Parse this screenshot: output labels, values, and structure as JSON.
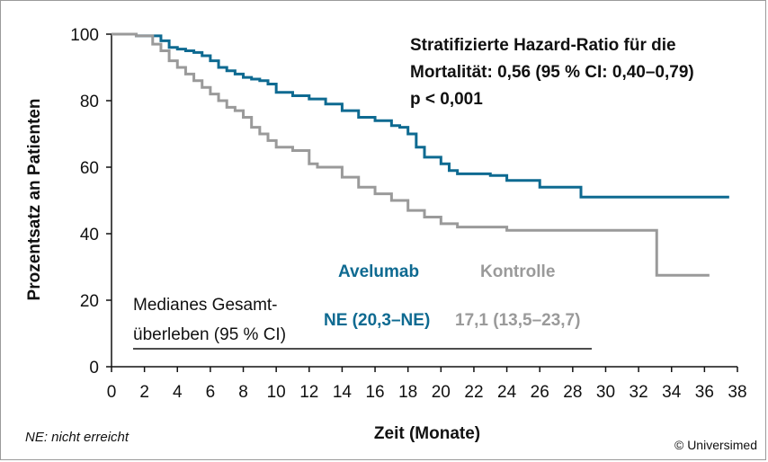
{
  "chart_data": {
    "type": "line",
    "subtype": "kaplan-meier",
    "title": "",
    "xlabel": "Zeit (Monate)",
    "ylabel": "Prozentsatz an Patienten",
    "xlim": [
      0,
      38
    ],
    "ylim": [
      0,
      100
    ],
    "xticks": [
      0,
      2,
      4,
      6,
      8,
      10,
      12,
      14,
      16,
      18,
      20,
      22,
      24,
      26,
      28,
      30,
      32,
      34,
      36,
      38
    ],
    "yticks": [
      0,
      20,
      40,
      60,
      80,
      100
    ],
    "grid": false,
    "series": [
      {
        "name": "Avelumab",
        "color": "#0e6a91",
        "x": [
          0,
          1.5,
          3,
          3.5,
          4,
          4.5,
          5,
          5.5,
          6,
          6.5,
          7,
          7.5,
          8,
          8.5,
          9,
          9.5,
          10,
          11,
          12,
          13,
          14,
          15,
          16,
          17,
          17.5,
          18,
          18.5,
          19,
          20,
          20.5,
          21,
          22,
          23,
          24,
          25,
          26,
          27,
          28,
          28.5,
          30,
          32,
          34,
          36,
          37.5
        ],
        "values": [
          100,
          99.5,
          98,
          96,
          95.5,
          95,
          94.5,
          93.5,
          92,
          90,
          89,
          88,
          87,
          86.5,
          86,
          85,
          82.5,
          81.5,
          80.5,
          79,
          77,
          75,
          74,
          72.5,
          72,
          70,
          66,
          63,
          61,
          59,
          58,
          58,
          57.5,
          56,
          56,
          54,
          54,
          54,
          51,
          51,
          51,
          51,
          51,
          51
        ]
      },
      {
        "name": "Kontrolle",
        "color": "#9a9a9a",
        "x": [
          0,
          1.5,
          2.5,
          3,
          3.5,
          4,
          4.5,
          5,
          5.5,
          6,
          6.5,
          7,
          7.5,
          8,
          8.5,
          9,
          9.5,
          10,
          11,
          12,
          12.5,
          13,
          14,
          15,
          16,
          17,
          18,
          19,
          20,
          21,
          22,
          24,
          26,
          28,
          30,
          32,
          33,
          33.1,
          35,
          36.3
        ],
        "values": [
          100,
          99.5,
          97,
          95,
          92,
          90,
          88,
          86,
          84,
          82,
          80,
          78,
          77,
          75,
          72,
          70,
          68,
          66,
          65,
          61,
          60,
          60,
          57,
          54,
          52,
          50,
          47,
          45,
          43,
          42,
          42,
          41,
          41,
          41,
          41,
          41,
          41,
          27.5,
          27.5,
          27.5
        ]
      }
    ],
    "annotations": {
      "stat_line1": "Stratifizierte Hazard-Ratio für die",
      "stat_line2": "Mortalität: 0,56 (95 % CI: 0,40–0,79)",
      "stat_line3": "p < 0,001",
      "legend_avelumab": "Avelumab",
      "legend_kontrolle": "Kontrolle",
      "median_label_line1": "Medianes Gesamt-",
      "median_label_line2": "überleben (95 % CI)",
      "median_avelumab": "NE (20,3–NE)",
      "median_kontrolle": "17,1 (13,5–23,7)"
    }
  },
  "footnote": "NE: nicht erreicht",
  "copyright": "© Universimed"
}
